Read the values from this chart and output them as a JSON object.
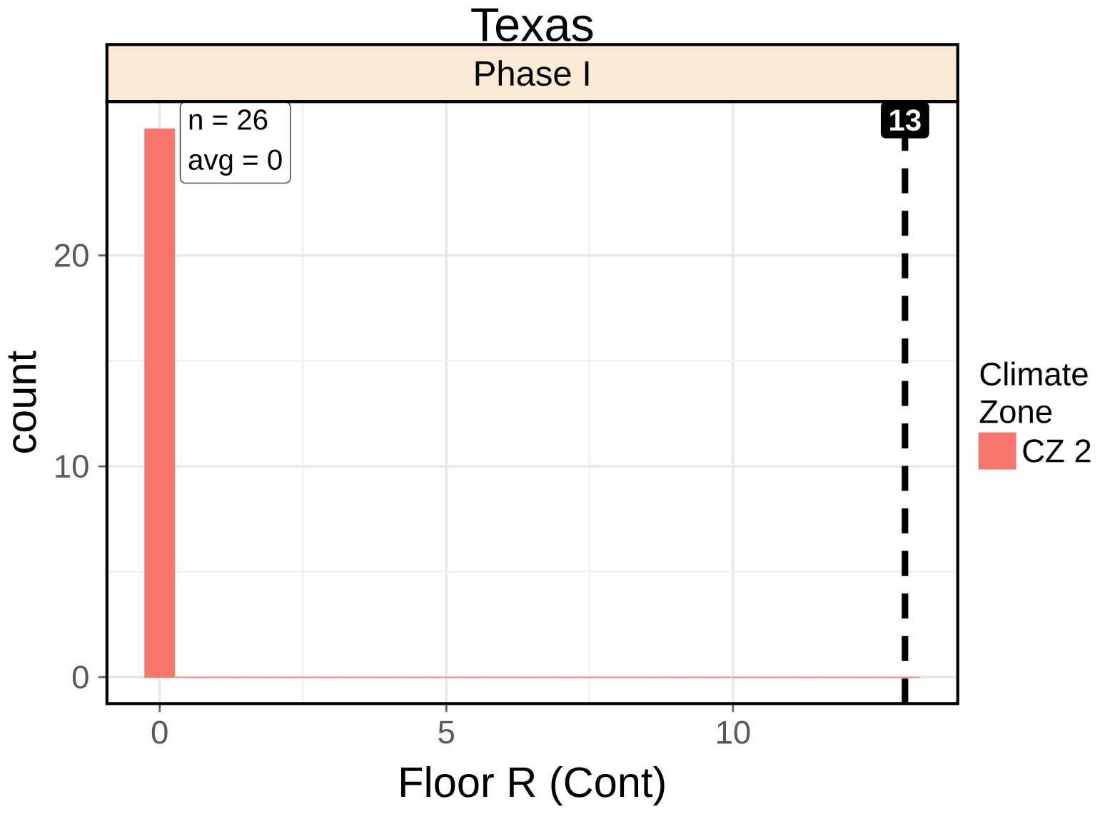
{
  "chart_data": {
    "type": "histogram",
    "title": "Texas",
    "subtitle": "Phase I",
    "xlabel": "Floor R (Cont)",
    "ylabel": "count",
    "legend_title": "Climate Zone",
    "bins": [
      -0.26,
      0.26,
      0.78,
      1.3,
      1.82,
      2.34,
      2.86,
      3.38,
      3.9,
      4.42,
      4.94,
      5.46,
      5.98,
      6.5,
      7.02,
      7.54,
      8.06,
      8.58,
      9.1,
      9.62,
      10.14,
      10.66,
      11.18,
      11.7,
      12.22,
      12.74,
      13.26
    ],
    "series": [
      {
        "name": "CZ 2",
        "color": "#f8766d",
        "values": [
          26,
          0,
          0,
          0,
          0,
          0,
          0,
          0,
          0,
          0,
          0,
          0,
          0,
          0,
          0,
          0,
          0,
          0,
          0,
          0,
          0,
          0,
          0,
          0,
          0,
          0
        ]
      }
    ],
    "xlim": [
      -0.92,
      13.92
    ],
    "ylim": [
      -1.25,
      27.3
    ],
    "xticks": [
      0,
      5,
      10
    ],
    "yticks": [
      0,
      10,
      20
    ],
    "ref_lines": [
      {
        "axis": "x",
        "value": 13,
        "label": "13",
        "color": "#000000",
        "line_style": "dashed"
      }
    ],
    "annotations": [
      "n = 26",
      "avg = 0"
    ],
    "grid": true,
    "legend": "right"
  }
}
